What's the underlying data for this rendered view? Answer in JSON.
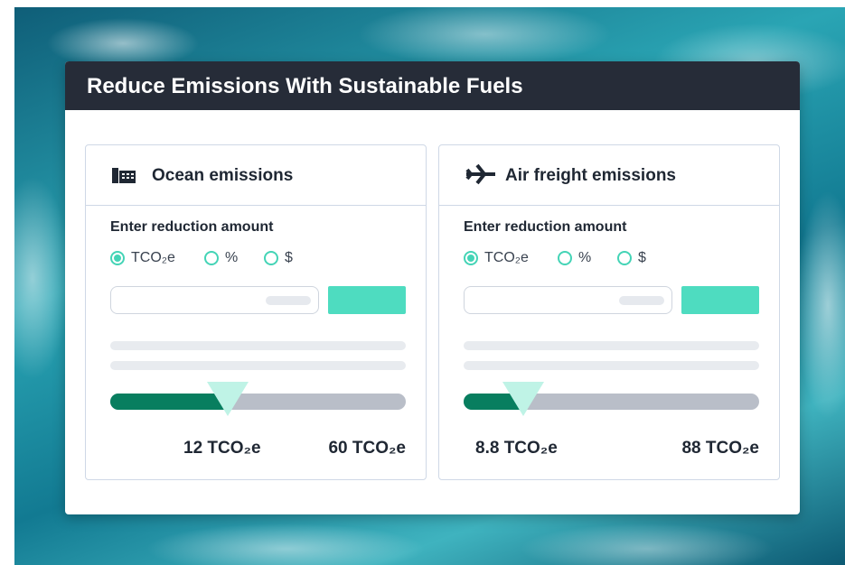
{
  "header": {
    "title": "Reduce Emissions With Sustainable Fuels"
  },
  "cards": [
    {
      "title": "Ocean emissions",
      "prompt": "Enter reduction amount",
      "options": [
        "TCO₂e",
        "%",
        "$"
      ],
      "selected": 0,
      "current": "12 TCO₂e",
      "max": "60 TCO₂e"
    },
    {
      "title": "Air freight emissions",
      "prompt": "Enter reduction amount",
      "options": [
        "TCO₂e",
        "%",
        "$"
      ],
      "selected": 0,
      "current": "8.8 TCO₂e",
      "max": "88 TCO₂e"
    }
  ]
}
